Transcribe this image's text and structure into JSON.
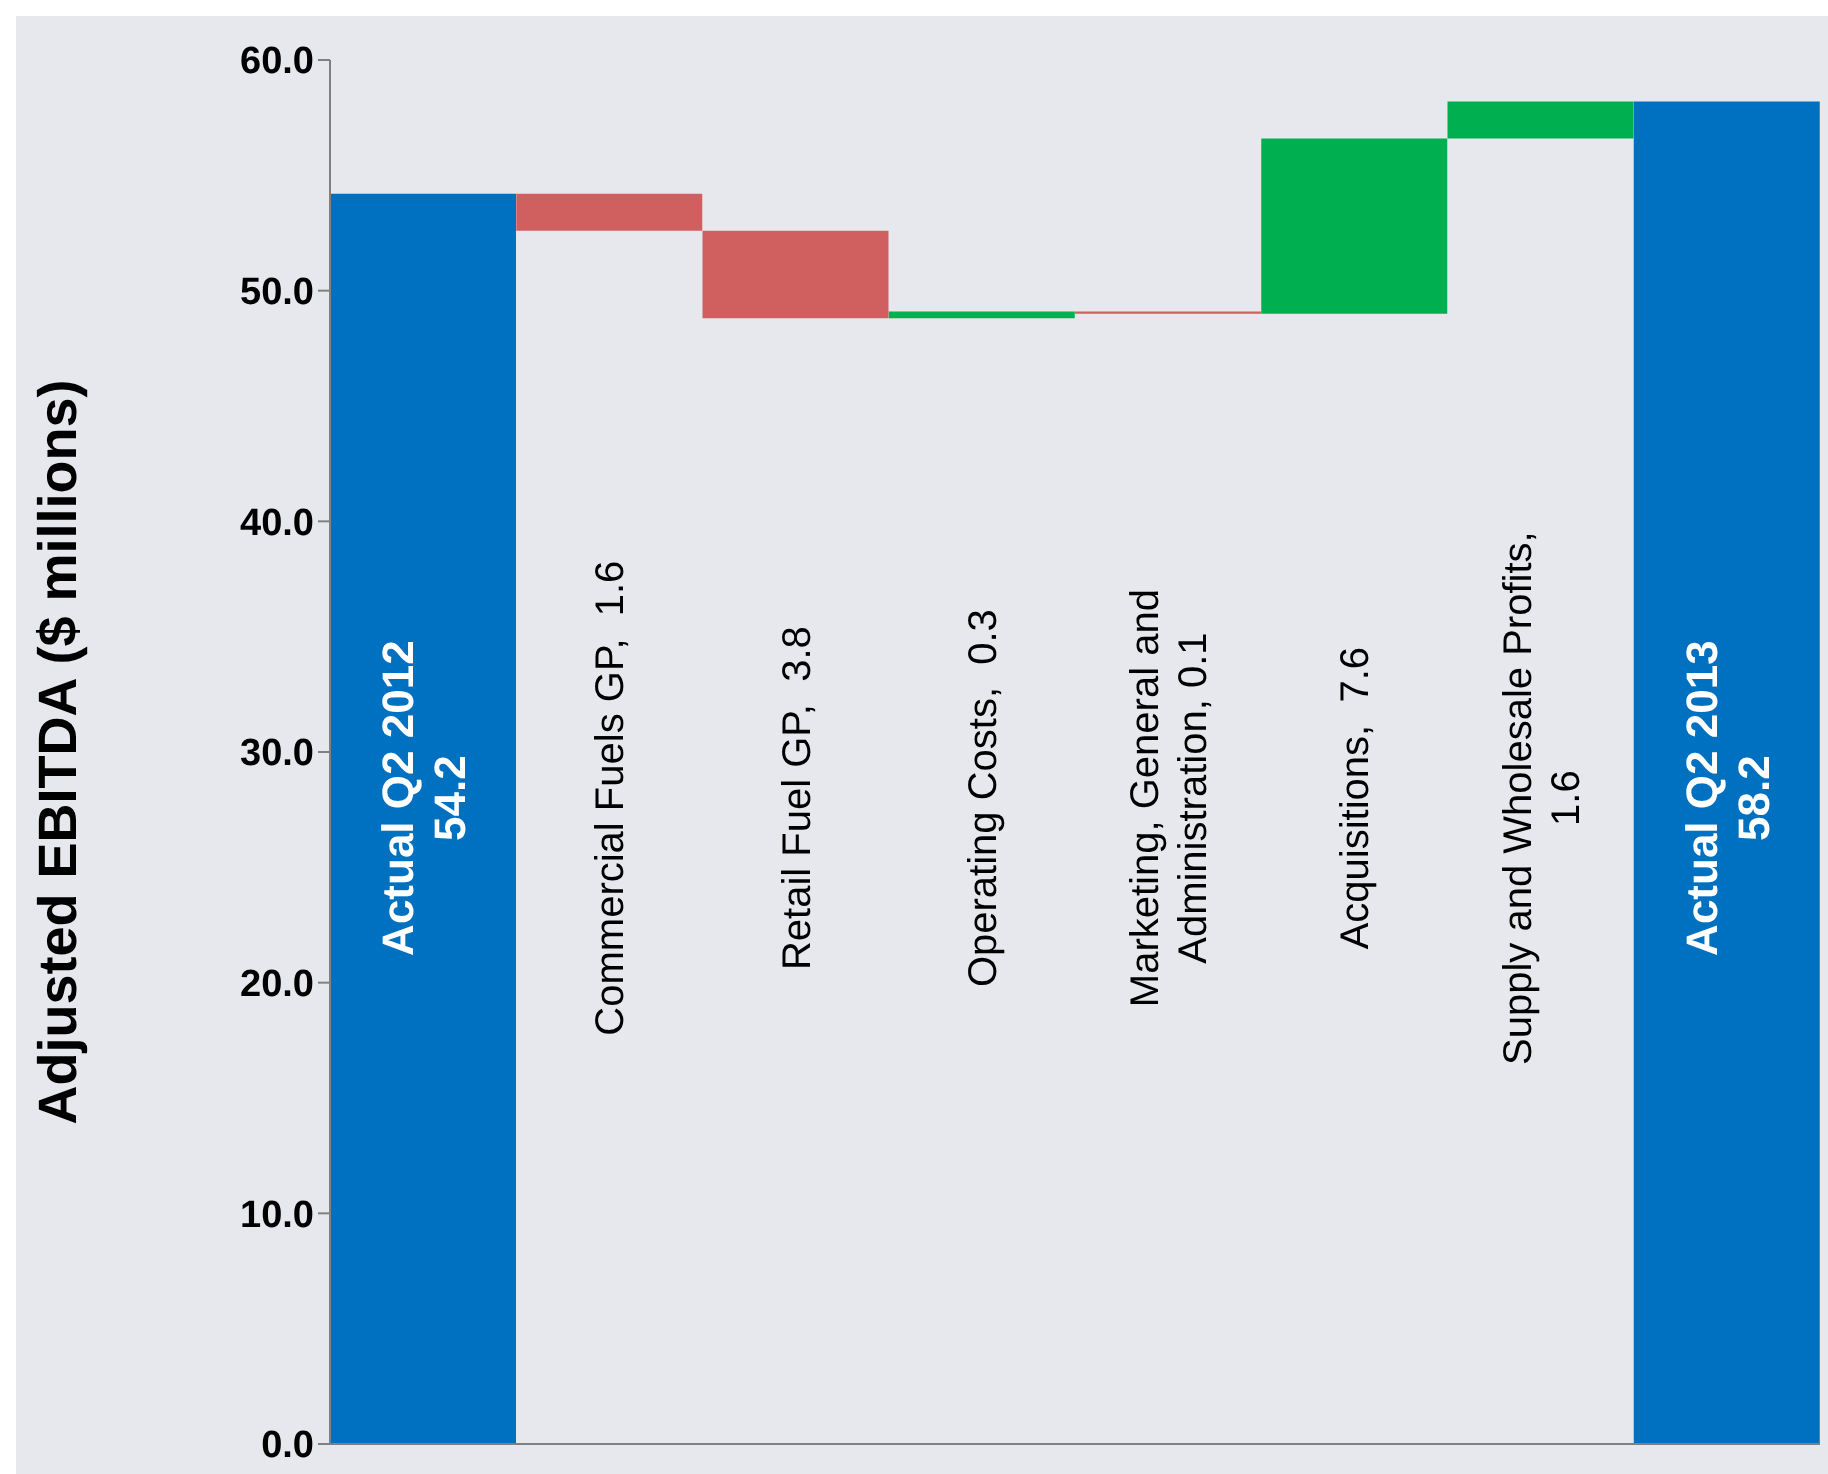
{
  "chart_data": {
    "type": "bar",
    "ylabel": "Adjusted EBITDA ($ millions)",
    "categories": [
      "Actual Q2 2012",
      "Commercial Fuels GP,  1.6",
      "Retail Fuel GP,  3.8",
      "Operating Costs,  0.3",
      "Marketing, General and Administration,  0.1",
      "Acquisitions,  7.6",
      "Supply and Wholesale Profits, 1.6",
      "Actual Q2 2013"
    ],
    "values": [
      54.2,
      -1.6,
      -3.8,
      0.3,
      -0.1,
      7.6,
      1.6,
      58.2
    ],
    "base": [
      0,
      54.2,
      52.6,
      48.8,
      49.1,
      49.0,
      56.6,
      0
    ],
    "value_labels": [
      "54.2",
      null,
      null,
      null,
      null,
      null,
      null,
      "58.2"
    ],
    "colors": [
      "#0070c0",
      "#d05f5f",
      "#d05f5f",
      "#00b050",
      "#d05f5f",
      "#00b050",
      "#00b050",
      "#0070c0"
    ],
    "ylim": [
      0,
      60
    ],
    "yticks": [
      {
        "value": 0,
        "label": "0.0"
      },
      {
        "value": 10,
        "label": "10.0"
      },
      {
        "value": 20,
        "label": "20.0"
      },
      {
        "value": 30,
        "label": "30.0"
      },
      {
        "value": 40,
        "label": "40.0"
      },
      {
        "value": 50,
        "label": "50.0"
      },
      {
        "value": 60,
        "label": "60.0"
      }
    ],
    "tick_labels": "y"
  }
}
